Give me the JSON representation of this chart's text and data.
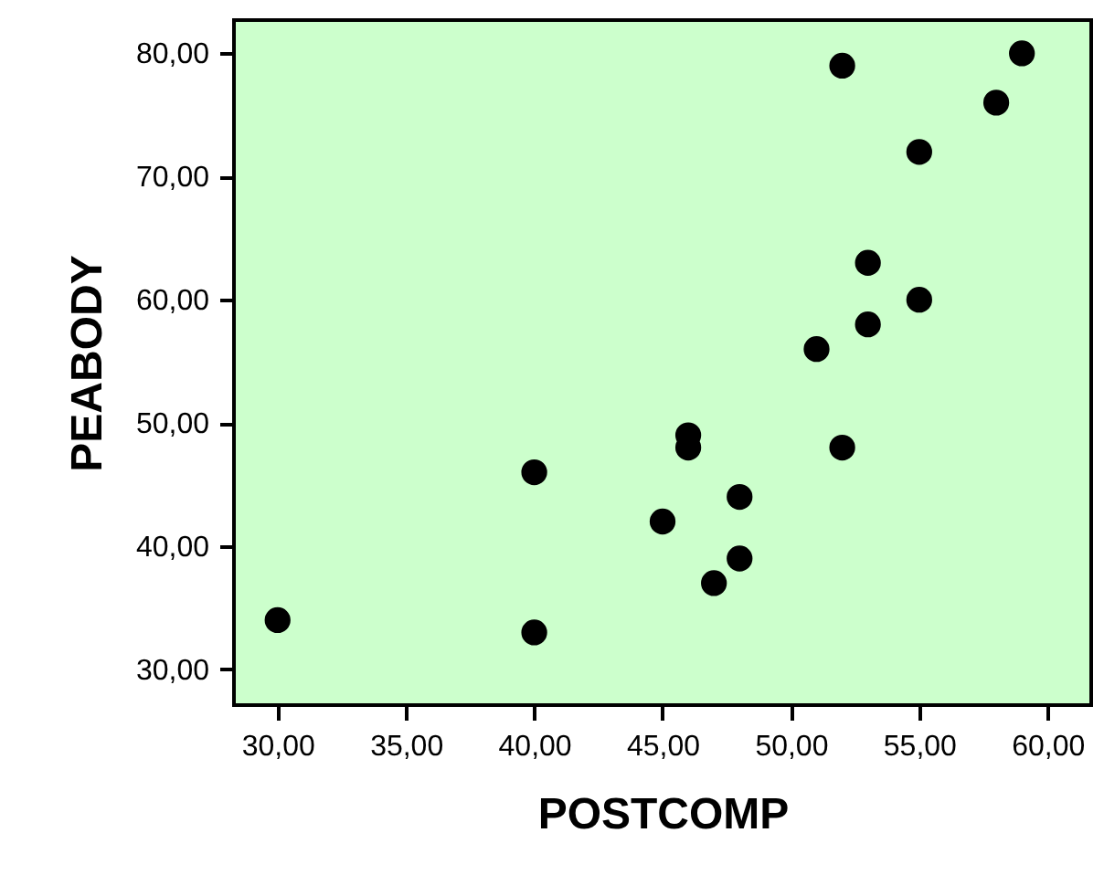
{
  "chart_data": {
    "type": "scatter",
    "xlabel": "POSTCOMP",
    "ylabel": "PEABODY",
    "x": [
      30,
      40,
      40,
      45,
      46,
      46,
      47,
      48,
      48,
      51,
      52,
      52,
      53,
      53,
      55,
      55,
      58,
      59
    ],
    "series": [
      {
        "color": "#000000",
        "values": [
          34,
          46,
          33,
          42,
          49,
          48,
          37,
          44,
          39,
          56,
          79,
          48,
          63,
          58,
          72,
          60,
          76,
          80
        ]
      }
    ],
    "marker": "circle",
    "xlim": [
      28.3,
      61.7
    ],
    "ylim": [
      27.1,
      82.7
    ],
    "xticks": [
      {
        "value": 30,
        "label": "30,00"
      },
      {
        "value": 35,
        "label": "35,00"
      },
      {
        "value": 40,
        "label": "40,00"
      },
      {
        "value": 45,
        "label": "45,00"
      },
      {
        "value": 50,
        "label": "50,00"
      },
      {
        "value": 55,
        "label": "55,00"
      },
      {
        "value": 60,
        "label": "60,00"
      }
    ],
    "yticks": [
      {
        "value": 30,
        "label": "30,00"
      },
      {
        "value": 40,
        "label": "40,00"
      },
      {
        "value": 50,
        "label": "50,00"
      },
      {
        "value": 60,
        "label": "60,00"
      },
      {
        "value": 70,
        "label": "70,00"
      },
      {
        "value": 80,
        "label": "80,00"
      }
    ],
    "grid": false
  }
}
